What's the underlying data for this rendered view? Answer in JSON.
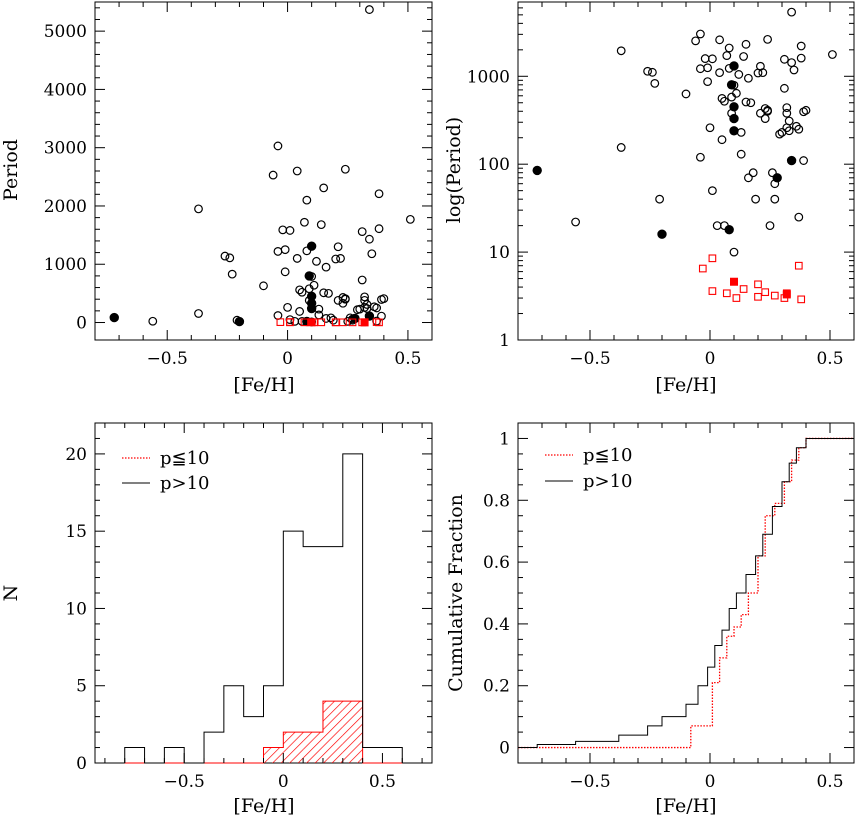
{
  "chart_data": [
    {
      "type": "scatter",
      "panel": "top-left",
      "xlabel": "[Fe/H]",
      "ylabel": "Period",
      "xlim": [
        -0.8,
        0.6
      ],
      "ylim": [
        -300,
        5500
      ],
      "x_ticks": [
        -0.5,
        0,
        0.5
      ],
      "x_tick_labels": [
        "−0.5",
        "0",
        "0.5"
      ],
      "y_ticks": [
        0,
        1000,
        2000,
        3000,
        4000,
        5000
      ],
      "y_tick_labels": [
        "0",
        "1000",
        "2000",
        "3000",
        "4000",
        "5000"
      ],
      "series": [
        {
          "marker": "open-circle",
          "color": "#000000",
          "points": [
            [
              -0.56,
              22
            ],
            [
              -0.37,
              155
            ],
            [
              -0.37,
              1950
            ],
            [
              -0.26,
              1140
            ],
            [
              -0.24,
              1110
            ],
            [
              -0.23,
              830
            ],
            [
              -0.21,
              40
            ],
            [
              -0.1,
              630
            ],
            [
              -0.06,
              2530
            ],
            [
              -0.04,
              3030
            ],
            [
              -0.04,
              1220
            ],
            [
              -0.04,
              120
            ],
            [
              -0.02,
              1590
            ],
            [
              -0.01,
              1250
            ],
            [
              -0.01,
              870
            ],
            [
              0.0,
              260
            ],
            [
              0.01,
              1580
            ],
            [
              0.01,
              50
            ],
            [
              0.03,
              20
            ],
            [
              0.04,
              2600
            ],
            [
              0.04,
              1100
            ],
            [
              0.05,
              190
            ],
            [
              0.05,
              560
            ],
            [
              0.06,
              520
            ],
            [
              0.06,
              20
            ],
            [
              0.07,
              1720
            ],
            [
              0.08,
              2100
            ],
            [
              0.08,
              1230
            ],
            [
              0.09,
              580
            ],
            [
              0.09,
              380
            ],
            [
              0.1,
              10
            ],
            [
              0.1,
              790
            ],
            [
              0.11,
              640
            ],
            [
              0.12,
              1050
            ],
            [
              0.13,
              230
            ],
            [
              0.13,
              130
            ],
            [
              0.14,
              1680
            ],
            [
              0.15,
              2310
            ],
            [
              0.15,
              510
            ],
            [
              0.16,
              950
            ],
            [
              0.16,
              70
            ],
            [
              0.17,
              500
            ],
            [
              0.18,
              80
            ],
            [
              0.19,
              40
            ],
            [
              0.2,
              1090
            ],
            [
              0.21,
              1300
            ],
            [
              0.21,
              380
            ],
            [
              0.22,
              1100
            ],
            [
              0.23,
              430
            ],
            [
              0.23,
              330
            ],
            [
              0.24,
              2630
            ],
            [
              0.24,
              400
            ],
            [
              0.24,
              410
            ],
            [
              0.25,
              20
            ],
            [
              0.26,
              80
            ],
            [
              0.27,
              60
            ],
            [
              0.27,
              40
            ],
            [
              0.29,
              220
            ],
            [
              0.3,
              230
            ],
            [
              0.31,
              1560
            ],
            [
              0.31,
              730
            ],
            [
              0.32,
              440
            ],
            [
              0.32,
              380
            ],
            [
              0.32,
              260
            ],
            [
              0.33,
              310
            ],
            [
              0.33,
              240
            ],
            [
              0.34,
              1430
            ],
            [
              0.34,
              5370
            ],
            [
              0.35,
              1180
            ],
            [
              0.36,
              270
            ],
            [
              0.37,
              250
            ],
            [
              0.37,
              25
            ],
            [
              0.38,
              1610
            ],
            [
              0.38,
              2210
            ],
            [
              0.39,
              110
            ],
            [
              0.39,
              395
            ],
            [
              0.4,
              410
            ],
            [
              0.51,
              1770
            ]
          ]
        },
        {
          "marker": "filled-circle",
          "color": "#000000",
          "points": [
            [
              -0.72,
              85
            ],
            [
              -0.2,
              16
            ],
            [
              0.08,
              18
            ],
            [
              0.1,
              1310
            ],
            [
              0.09,
              800
            ],
            [
              0.1,
              450
            ],
            [
              0.1,
              330
            ],
            [
              0.1,
              240
            ],
            [
              0.28,
              70
            ],
            [
              0.34,
              110
            ]
          ]
        },
        {
          "marker": "open-square",
          "color": "#ff0000",
          "points": [
            [
              -0.03,
              6.5
            ],
            [
              0.01,
              8.5
            ],
            [
              0.01,
              3.6
            ],
            [
              0.07,
              3.4
            ],
            [
              0.11,
              3.0
            ],
            [
              0.14,
              3.8
            ],
            [
              0.2,
              3.1
            ],
            [
              0.2,
              4.3
            ],
            [
              0.23,
              3.5
            ],
            [
              0.27,
              3.2
            ],
            [
              0.31,
              3.0
            ],
            [
              0.32,
              3.4
            ],
            [
              0.37,
              7.0
            ],
            [
              0.38,
              2.9
            ]
          ]
        },
        {
          "marker": "filled-square",
          "color": "#ff0000",
          "points": [
            [
              0.1,
              4.6
            ],
            [
              0.32,
              3.3
            ]
          ]
        }
      ]
    },
    {
      "type": "scatter",
      "panel": "top-right",
      "xlabel": "[Fe/H]",
      "ylabel": "log(Period)",
      "scale_y": "log",
      "xlim": [
        -0.8,
        0.6
      ],
      "ylim": [
        1,
        7000
      ],
      "x_ticks": [
        -0.5,
        0,
        0.5
      ],
      "x_tick_labels": [
        "−0.5",
        "0",
        "0.5"
      ],
      "y_ticks": [
        1,
        10,
        100,
        1000
      ],
      "y_tick_labels": [
        "1",
        "10",
        "100",
        "1000"
      ]
    },
    {
      "type": "bar",
      "panel": "bottom-left",
      "xlabel": "[Fe/H]",
      "ylabel": "N",
      "xlim": [
        -0.95,
        0.75
      ],
      "ylim": [
        0,
        22
      ],
      "x_ticks": [
        -0.5,
        0,
        0.5
      ],
      "x_tick_labels": [
        "−0.5",
        "0",
        "0.5"
      ],
      "y_ticks": [
        0,
        5,
        10,
        15,
        20
      ],
      "y_tick_labels": [
        "0",
        "5",
        "10",
        "15",
        "20"
      ],
      "legend": {
        "position": "top-left",
        "entries": [
          "p≦10",
          "p>10"
        ]
      },
      "bin_edges": [
        -0.8,
        -0.7,
        -0.6,
        -0.5,
        -0.4,
        -0.3,
        -0.2,
        -0.1,
        0.0,
        0.1,
        0.2,
        0.3,
        0.4,
        0.5,
        0.6
      ],
      "series": [
        {
          "name": "p≦10",
          "color": "#ff0000",
          "hatch": true,
          "values": [
            0,
            0,
            0,
            0,
            0,
            0,
            0,
            1,
            2,
            2,
            4,
            4,
            0,
            0
          ]
        },
        {
          "name": "p>10",
          "color": "#000000",
          "hatch": false,
          "values": [
            1,
            0,
            1,
            0,
            2,
            5,
            3,
            5,
            15,
            14,
            14,
            20,
            1,
            1
          ]
        }
      ]
    },
    {
      "type": "line",
      "panel": "bottom-right",
      "xlabel": "[Fe/H]",
      "ylabel": "Cumulative Fraction",
      "xlim": [
        -0.8,
        0.6
      ],
      "ylim": [
        -0.05,
        1.05
      ],
      "x_ticks": [
        -0.5,
        0,
        0.5
      ],
      "x_tick_labels": [
        "−0.5",
        "0",
        "0.5"
      ],
      "y_ticks": [
        0,
        0.2,
        0.4,
        0.6,
        0.8,
        1
      ],
      "y_tick_labels": [
        "0",
        "0.2",
        "0.4",
        "0.6",
        "0.8",
        "1"
      ],
      "legend": {
        "position": "top-left",
        "entries": [
          "p≦10",
          "p>10"
        ]
      },
      "series": [
        {
          "name": "p≦10",
          "color": "#ff0000",
          "style": "dotted",
          "x": [
            -0.8,
            -0.08,
            -0.08,
            0.01,
            0.01,
            0.04,
            0.04,
            0.07,
            0.07,
            0.1,
            0.1,
            0.13,
            0.13,
            0.16,
            0.16,
            0.2,
            0.2,
            0.23,
            0.23,
            0.27,
            0.27,
            0.31,
            0.31,
            0.34,
            0.34,
            0.37,
            0.37,
            0.4,
            0.4,
            0.6
          ],
          "y": [
            0,
            0,
            0.07,
            0.07,
            0.21,
            0.21,
            0.29,
            0.29,
            0.36,
            0.36,
            0.39,
            0.39,
            0.43,
            0.43,
            0.5,
            0.5,
            0.62,
            0.62,
            0.75,
            0.75,
            0.79,
            0.79,
            0.86,
            0.86,
            0.93,
            0.93,
            0.97,
            0.97,
            1,
            1
          ]
        },
        {
          "name": "p>10",
          "color": "#000000",
          "style": "solid",
          "x": [
            -0.8,
            -0.72,
            -0.72,
            -0.56,
            -0.56,
            -0.38,
            -0.38,
            -0.26,
            -0.26,
            -0.2,
            -0.2,
            -0.1,
            -0.1,
            -0.05,
            -0.05,
            -0.01,
            -0.01,
            0.02,
            0.02,
            0.05,
            0.05,
            0.08,
            0.08,
            0.11,
            0.11,
            0.15,
            0.15,
            0.19,
            0.19,
            0.22,
            0.22,
            0.26,
            0.26,
            0.3,
            0.3,
            0.33,
            0.33,
            0.36,
            0.36,
            0.4,
            0.4,
            0.6
          ],
          "y": [
            0,
            0,
            0.01,
            0.01,
            0.02,
            0.02,
            0.04,
            0.04,
            0.07,
            0.07,
            0.1,
            0.1,
            0.14,
            0.14,
            0.2,
            0.2,
            0.26,
            0.26,
            0.33,
            0.33,
            0.38,
            0.38,
            0.45,
            0.45,
            0.5,
            0.5,
            0.56,
            0.56,
            0.62,
            0.62,
            0.69,
            0.69,
            0.78,
            0.78,
            0.86,
            0.86,
            0.92,
            0.92,
            0.97,
            0.97,
            1,
            1
          ]
        }
      ]
    }
  ]
}
